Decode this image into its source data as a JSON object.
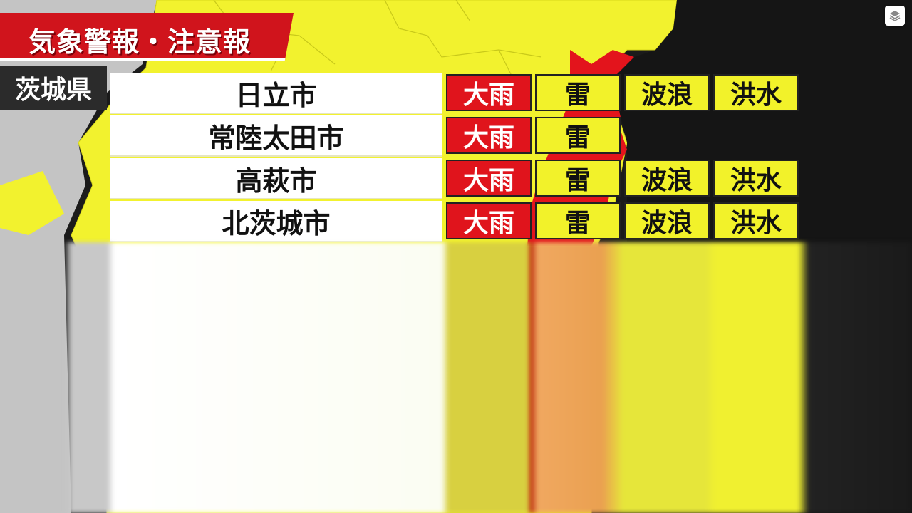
{
  "header": {
    "title": "気象警報・注意報"
  },
  "prefecture": {
    "label": "茨城県"
  },
  "colors": {
    "warning_red": "#e0141c",
    "advisory_yellow": "#f2f22a",
    "map_yellow": "#f0f02c",
    "sea": "#1a1a1a",
    "neighbor_land": "#c8c8c8"
  },
  "rows": [
    {
      "city": "日立市",
      "labels": [
        "大雨",
        "雷",
        "波浪",
        "洪水"
      ],
      "levels": [
        "warning",
        "advisory",
        "advisory",
        "advisory"
      ]
    },
    {
      "city": "常陸太田市",
      "labels": [
        "大雨",
        "雷"
      ],
      "levels": [
        "warning",
        "advisory"
      ]
    },
    {
      "city": "高萩市",
      "labels": [
        "大雨",
        "雷",
        "波浪",
        "洪水"
      ],
      "levels": [
        "warning",
        "advisory",
        "advisory",
        "advisory"
      ]
    },
    {
      "city": "北茨城市",
      "labels": [
        "大雨",
        "雷",
        "波浪",
        "洪水"
      ],
      "levels": [
        "warning",
        "advisory",
        "advisory",
        "advisory"
      ]
    }
  ],
  "icons": {
    "layers": "layers-icon"
  }
}
